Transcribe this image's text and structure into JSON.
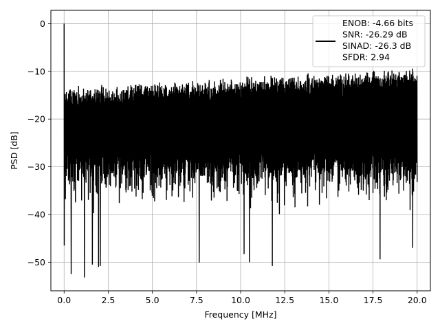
{
  "chart_data": {
    "type": "line",
    "title": "",
    "xlabel": "Frequency [MHz]",
    "ylabel": "PSD [dB]",
    "xlim": [
      -0.75,
      20.75
    ],
    "ylim": [
      -56,
      2.8
    ],
    "grid": true,
    "x_ticks": [
      0.0,
      2.5,
      5.0,
      7.5,
      10.0,
      12.5,
      15.0,
      17.5,
      20.0
    ],
    "x_tick_labels": [
      "0.0",
      "2.5",
      "5.0",
      "7.5",
      "10.0",
      "12.5",
      "15.0",
      "17.5",
      "20.0"
    ],
    "y_ticks": [
      0,
      -10,
      -20,
      -30,
      -40,
      -50
    ],
    "y_tick_labels": [
      "0",
      "−10",
      "−20",
      "−30",
      "−40",
      "−50"
    ],
    "legend": {
      "placement": "top-right",
      "lines": [
        "ENOB: -4.66 bits",
        "SNR: -26.29 dB",
        "SINAD: -26.3 dB",
        "SFDR: 2.94"
      ]
    },
    "series": [
      {
        "color": "#000000",
        "x_range": [
          0,
          20
        ],
        "dc_peak": {
          "x": 0.0,
          "y": 0.0
        },
        "floor_mean_db": -21,
        "upper_envelope_db": [
          -13,
          -12,
          -11,
          -10,
          -9
        ],
        "notable_dips": [
          {
            "x": 0.4,
            "y": -52.5
          },
          {
            "x": 1.15,
            "y": -53.2
          },
          {
            "x": 1.6,
            "y": -50.5
          },
          {
            "x": 1.95,
            "y": -51.0
          },
          {
            "x": 2.05,
            "y": -50.8
          },
          {
            "x": 7.65,
            "y": -50.1
          },
          {
            "x": 10.2,
            "y": -48.3
          },
          {
            "x": 10.5,
            "y": -50.0
          },
          {
            "x": 11.8,
            "y": -50.8
          },
          {
            "x": 17.9,
            "y": -49.4
          },
          {
            "x": 19.75,
            "y": -47.0
          }
        ]
      }
    ]
  }
}
